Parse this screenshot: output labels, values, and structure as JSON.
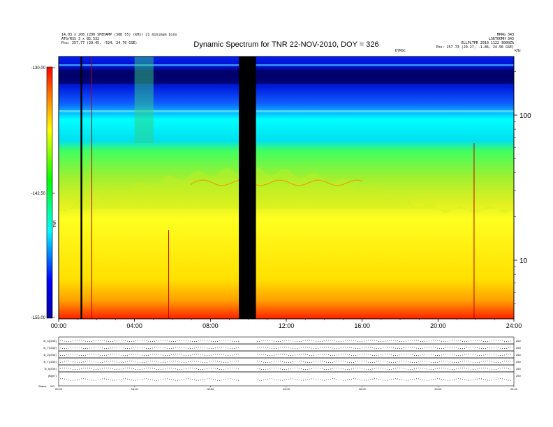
{
  "header": {
    "left_line1": "14.03 x 208 (200 SPEHAMP (SOD 55) (kHz) 21 minimum bins",
    "left_line2": "ATG/RSS 3 x 85.532",
    "left_line3": "Pos: 257.77 (29.45, -524, 24.70 GSE)",
    "right_line1": "MPRG 343",
    "right_line2": "LSKTOOMH 343",
    "right_line3": "ELLPLTPR 2010 1122 3000ZA",
    "right_line4": "Pos: 257.73 (29.27, -1.86, 24.56 GSE)",
    "right_small": "DYNSC",
    "right_corner": "kHz"
  },
  "chart_data": {
    "type": "heatmap",
    "title": "Dynamic Spectrum for TNR 22-NOV-2010, DOY = 326",
    "x_ticks": [
      "00:00",
      "04:00",
      "08:00",
      "12:00",
      "16:00",
      "20:00",
      "24:00"
    ],
    "x_range_hours": [
      0,
      24
    ],
    "y_scale": "log",
    "y_ticks": [
      100,
      10
    ],
    "y_unit": "kHz",
    "colorbar": {
      "ticks": [
        "-130.00",
        "-142.50",
        "-155.00"
      ],
      "range": [
        -155.0,
        -130.0
      ],
      "label": "TNR",
      "colors": [
        "#ff0000",
        "#ff8000",
        "#ffff00",
        "#00ff00",
        "#00ffff",
        "#0000ff",
        "#000080"
      ]
    },
    "data_gaps_hours": [
      [
        9.5,
        10.4
      ]
    ],
    "spike_hours": [
      1.2,
      1.75,
      5.8,
      21.9
    ]
  },
  "panels": {
    "labels": [
      "B_X(GSE)",
      "B_Y(GSE)",
      "B_Z(GSE)",
      "B_T(GSE)",
      "N_I(GSE)",
      "|B|(nT)"
    ],
    "right_labels": [
      "250",
      "250",
      "250",
      "250",
      "250",
      "250"
    ],
    "x_ticks": [
      "00:00",
      "04:00",
      "08:00",
      "12:00",
      "16:00",
      "20:00",
      "24:00"
    ],
    "footer_label": "Status",
    "footer_value": "0/0"
  }
}
